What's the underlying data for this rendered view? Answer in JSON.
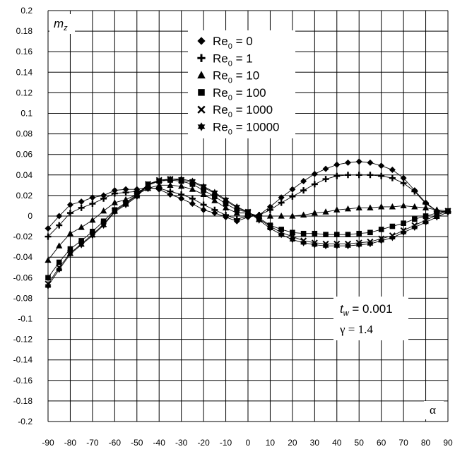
{
  "chart_data": {
    "type": "line",
    "title": "",
    "xlabel": "α",
    "ylabel": "m_z",
    "ylabel_main": "m",
    "ylabel_sub": "z",
    "xlim": [
      -90,
      90
    ],
    "ylim": [
      -0.2,
      0.2
    ],
    "x_ticks": [
      -90,
      -80,
      -70,
      -60,
      -50,
      -40,
      -30,
      -20,
      -10,
      0,
      10,
      20,
      30,
      40,
      50,
      60,
      70,
      80,
      90
    ],
    "y_ticks": [
      0.2,
      0.18,
      0.16,
      0.14,
      0.12,
      0.1,
      0.08,
      0.06,
      0.04,
      0.02,
      0,
      -0.02,
      -0.04,
      -0.06,
      -0.08,
      -0.1,
      -0.12,
      -0.14,
      -0.16,
      -0.18,
      -0.2
    ],
    "grid": true,
    "legend_position": "top-center",
    "annotations": [
      {
        "main": "t",
        "sub": "w",
        "text": " = 0.001"
      },
      {
        "text": "γ = 1.4"
      }
    ],
    "x": [
      -90,
      -85,
      -80,
      -75,
      -70,
      -65,
      -60,
      -55,
      -50,
      -45,
      -40,
      -35,
      -30,
      -25,
      -20,
      -15,
      -10,
      -5,
      0,
      5,
      10,
      15,
      20,
      25,
      30,
      35,
      40,
      45,
      50,
      55,
      60,
      65,
      70,
      75,
      80,
      85,
      90
    ],
    "series": [
      {
        "name": "Re0 = 0",
        "label_main": "Re",
        "label_sub": "0",
        "label_rest": " = 0",
        "marker": "diamond",
        "values": [
          -0.012,
          0.0,
          0.011,
          0.014,
          0.018,
          0.02,
          0.025,
          0.026,
          0.026,
          0.028,
          0.026,
          0.021,
          0.017,
          0.012,
          0.006,
          0.003,
          -0.001,
          -0.005,
          -0.001,
          0.001,
          0.009,
          0.018,
          0.026,
          0.034,
          0.041,
          0.046,
          0.05,
          0.052,
          0.053,
          0.052,
          0.049,
          0.045,
          0.037,
          0.025,
          0.013,
          0.005,
          0.004
        ]
      },
      {
        "name": "Re0 = 1",
        "label_main": "Re",
        "label_sub": "0",
        "label_rest": " = 1",
        "marker": "plus",
        "values": [
          -0.02,
          -0.009,
          0.003,
          0.008,
          0.012,
          0.017,
          0.022,
          0.023,
          0.024,
          0.027,
          0.027,
          0.024,
          0.021,
          0.017,
          0.011,
          0.006,
          0.001,
          -0.003,
          0.0,
          0.001,
          0.006,
          0.013,
          0.019,
          0.025,
          0.031,
          0.036,
          0.039,
          0.04,
          0.04,
          0.04,
          0.039,
          0.037,
          0.032,
          0.024,
          0.012,
          0.005,
          0.004
        ]
      },
      {
        "name": "Re0 = 10",
        "label_main": "Re",
        "label_sub": "0",
        "label_rest": " = 10",
        "marker": "triangle",
        "values": [
          -0.043,
          -0.029,
          -0.017,
          -0.011,
          -0.004,
          0.005,
          0.013,
          0.016,
          0.021,
          0.027,
          0.03,
          0.03,
          0.029,
          0.026,
          0.021,
          0.015,
          0.008,
          0.003,
          0.003,
          0.0,
          0.0,
          0.0,
          0.0,
          0.001,
          0.003,
          0.004,
          0.006,
          0.007,
          0.008,
          0.008,
          0.009,
          0.009,
          0.01,
          0.009,
          0.008,
          0.006,
          0.005
        ]
      },
      {
        "name": "Re0 = 100",
        "label_main": "Re",
        "label_sub": "0",
        "label_rest": " = 100",
        "marker": "square",
        "values": [
          -0.06,
          -0.045,
          -0.032,
          -0.024,
          -0.015,
          -0.005,
          0.006,
          0.013,
          0.021,
          0.031,
          0.034,
          0.035,
          0.034,
          0.031,
          0.025,
          0.019,
          0.012,
          0.006,
          0.004,
          -0.002,
          -0.009,
          -0.013,
          -0.016,
          -0.017,
          -0.017,
          -0.018,
          -0.018,
          -0.018,
          -0.017,
          -0.016,
          -0.013,
          -0.01,
          -0.007,
          -0.003,
          0.0,
          0.003,
          0.005
        ]
      },
      {
        "name": "Re0 = 1000",
        "label_main": "Re",
        "label_sub": "0",
        "label_rest": " = 1000",
        "marker": "cross",
        "values": [
          -0.066,
          -0.05,
          -0.036,
          -0.027,
          -0.018,
          -0.008,
          0.005,
          0.012,
          0.02,
          0.031,
          0.035,
          0.036,
          0.035,
          0.033,
          0.028,
          0.022,
          0.015,
          0.008,
          0.004,
          -0.003,
          -0.01,
          -0.016,
          -0.02,
          -0.024,
          -0.026,
          -0.027,
          -0.027,
          -0.027,
          -0.026,
          -0.025,
          -0.022,
          -0.019,
          -0.014,
          -0.009,
          -0.004,
          0.001,
          0.005
        ]
      },
      {
        "name": "Re0 = 10000",
        "label_main": "Re",
        "label_sub": "0",
        "label_rest": " = 10000",
        "marker": "star",
        "values": [
          -0.068,
          -0.052,
          -0.037,
          -0.028,
          -0.019,
          -0.009,
          0.004,
          0.011,
          0.019,
          0.03,
          0.034,
          0.036,
          0.036,
          0.034,
          0.029,
          0.023,
          0.016,
          0.009,
          0.004,
          -0.004,
          -0.012,
          -0.018,
          -0.023,
          -0.026,
          -0.028,
          -0.029,
          -0.029,
          -0.029,
          -0.028,
          -0.027,
          -0.024,
          -0.021,
          -0.016,
          -0.011,
          -0.006,
          -0.001,
          0.004
        ]
      }
    ]
  }
}
